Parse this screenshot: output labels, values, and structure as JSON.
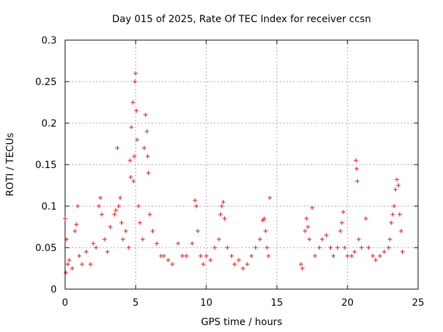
{
  "chart_data": {
    "type": "scatter",
    "title": "Day 015 of 2025, Rate Of TEC Index for receiver ccsn",
    "xlabel": "GPS time / hours",
    "ylabel": "ROTI / TECUs",
    "xlim": [
      0,
      25
    ],
    "ylim": [
      0,
      0.3
    ],
    "xticks": [
      0,
      5,
      10,
      15,
      20,
      25
    ],
    "xtick_labels": [
      "0",
      "5",
      "10",
      "15",
      "20",
      "25"
    ],
    "yticks": [
      0,
      0.05,
      0.1,
      0.15,
      0.2,
      0.25,
      0.3
    ],
    "ytick_labels": [
      "0",
      "0.05",
      "0.1",
      "0.15",
      "0.2",
      "0.25",
      "0.3"
    ],
    "grid": true,
    "marker": "+",
    "color": "#ff0000",
    "data_gap_hours": [
      14.5,
      16.7
    ],
    "series": [
      {
        "name": "ROTI",
        "points": [
          [
            0.0,
            0.085
          ],
          [
            0.05,
            0.02
          ],
          [
            0.1,
            0.06
          ],
          [
            0.2,
            0.03
          ],
          [
            0.3,
            0.035
          ],
          [
            0.5,
            0.025
          ],
          [
            0.7,
            0.07
          ],
          [
            0.8,
            0.078
          ],
          [
            0.9,
            0.1
          ],
          [
            1.0,
            0.04
          ],
          [
            1.2,
            0.03
          ],
          [
            1.5,
            0.045
          ],
          [
            1.8,
            0.03
          ],
          [
            2.0,
            0.055
          ],
          [
            2.2,
            0.05
          ],
          [
            2.4,
            0.1
          ],
          [
            2.5,
            0.11
          ],
          [
            2.6,
            0.09
          ],
          [
            2.8,
            0.06
          ],
          [
            3.0,
            0.045
          ],
          [
            3.2,
            0.075
          ],
          [
            3.5,
            0.09
          ],
          [
            3.6,
            0.095
          ],
          [
            3.7,
            0.17
          ],
          [
            3.8,
            0.1
          ],
          [
            3.9,
            0.11
          ],
          [
            4.0,
            0.08
          ],
          [
            4.1,
            0.06
          ],
          [
            4.3,
            0.07
          ],
          [
            4.5,
            0.05
          ],
          [
            4.6,
            0.155
          ],
          [
            4.65,
            0.135
          ],
          [
            4.7,
            0.195
          ],
          [
            4.8,
            0.225
          ],
          [
            4.85,
            0.13
          ],
          [
            4.9,
            0.16
          ],
          [
            4.95,
            0.25
          ],
          [
            5.0,
            0.26
          ],
          [
            5.05,
            0.215
          ],
          [
            5.1,
            0.18
          ],
          [
            5.2,
            0.1
          ],
          [
            5.3,
            0.08
          ],
          [
            5.5,
            0.06
          ],
          [
            5.6,
            0.17
          ],
          [
            5.7,
            0.21
          ],
          [
            5.8,
            0.19
          ],
          [
            5.85,
            0.16
          ],
          [
            5.9,
            0.14
          ],
          [
            6.0,
            0.09
          ],
          [
            6.2,
            0.07
          ],
          [
            6.5,
            0.055
          ],
          [
            6.8,
            0.04
          ],
          [
            7.0,
            0.04
          ],
          [
            7.3,
            0.035
          ],
          [
            7.6,
            0.03
          ],
          [
            8.0,
            0.055
          ],
          [
            8.3,
            0.04
          ],
          [
            8.6,
            0.04
          ],
          [
            9.0,
            0.055
          ],
          [
            9.2,
            0.107
          ],
          [
            9.3,
            0.1
          ],
          [
            9.4,
            0.07
          ],
          [
            9.6,
            0.04
          ],
          [
            9.8,
            0.03
          ],
          [
            10.0,
            0.04
          ],
          [
            10.3,
            0.035
          ],
          [
            10.6,
            0.05
          ],
          [
            10.9,
            0.06
          ],
          [
            11.0,
            0.09
          ],
          [
            11.1,
            0.1
          ],
          [
            11.2,
            0.105
          ],
          [
            11.3,
            0.085
          ],
          [
            11.5,
            0.05
          ],
          [
            11.8,
            0.04
          ],
          [
            12.0,
            0.03
          ],
          [
            12.3,
            0.035
          ],
          [
            12.6,
            0.025
          ],
          [
            12.9,
            0.03
          ],
          [
            13.2,
            0.04
          ],
          [
            13.5,
            0.05
          ],
          [
            13.8,
            0.06
          ],
          [
            14.0,
            0.083
          ],
          [
            14.1,
            0.085
          ],
          [
            14.2,
            0.07
          ],
          [
            14.3,
            0.05
          ],
          [
            14.4,
            0.04
          ],
          [
            14.5,
            0.11
          ],
          [
            16.7,
            0.03
          ],
          [
            16.8,
            0.025
          ],
          [
            17.0,
            0.07
          ],
          [
            17.1,
            0.085
          ],
          [
            17.2,
            0.075
          ],
          [
            17.3,
            0.06
          ],
          [
            17.5,
            0.098
          ],
          [
            17.7,
            0.04
          ],
          [
            18.0,
            0.05
          ],
          [
            18.2,
            0.06
          ],
          [
            18.5,
            0.065
          ],
          [
            18.8,
            0.05
          ],
          [
            19.0,
            0.04
          ],
          [
            19.3,
            0.05
          ],
          [
            19.5,
            0.07
          ],
          [
            19.6,
            0.08
          ],
          [
            19.7,
            0.093
          ],
          [
            19.8,
            0.05
          ],
          [
            20.0,
            0.04
          ],
          [
            20.3,
            0.04
          ],
          [
            20.5,
            0.045
          ],
          [
            20.6,
            0.155
          ],
          [
            20.65,
            0.145
          ],
          [
            20.7,
            0.13
          ],
          [
            20.8,
            0.06
          ],
          [
            21.0,
            0.05
          ],
          [
            21.3,
            0.085
          ],
          [
            21.5,
            0.05
          ],
          [
            21.8,
            0.04
          ],
          [
            22.0,
            0.035
          ],
          [
            22.3,
            0.04
          ],
          [
            22.6,
            0.045
          ],
          [
            22.9,
            0.05
          ],
          [
            23.0,
            0.06
          ],
          [
            23.1,
            0.08
          ],
          [
            23.2,
            0.09
          ],
          [
            23.3,
            0.1
          ],
          [
            23.4,
            0.12
          ],
          [
            23.5,
            0.132
          ],
          [
            23.6,
            0.125
          ],
          [
            23.7,
            0.09
          ],
          [
            23.8,
            0.07
          ],
          [
            23.9,
            0.045
          ]
        ]
      }
    ]
  }
}
